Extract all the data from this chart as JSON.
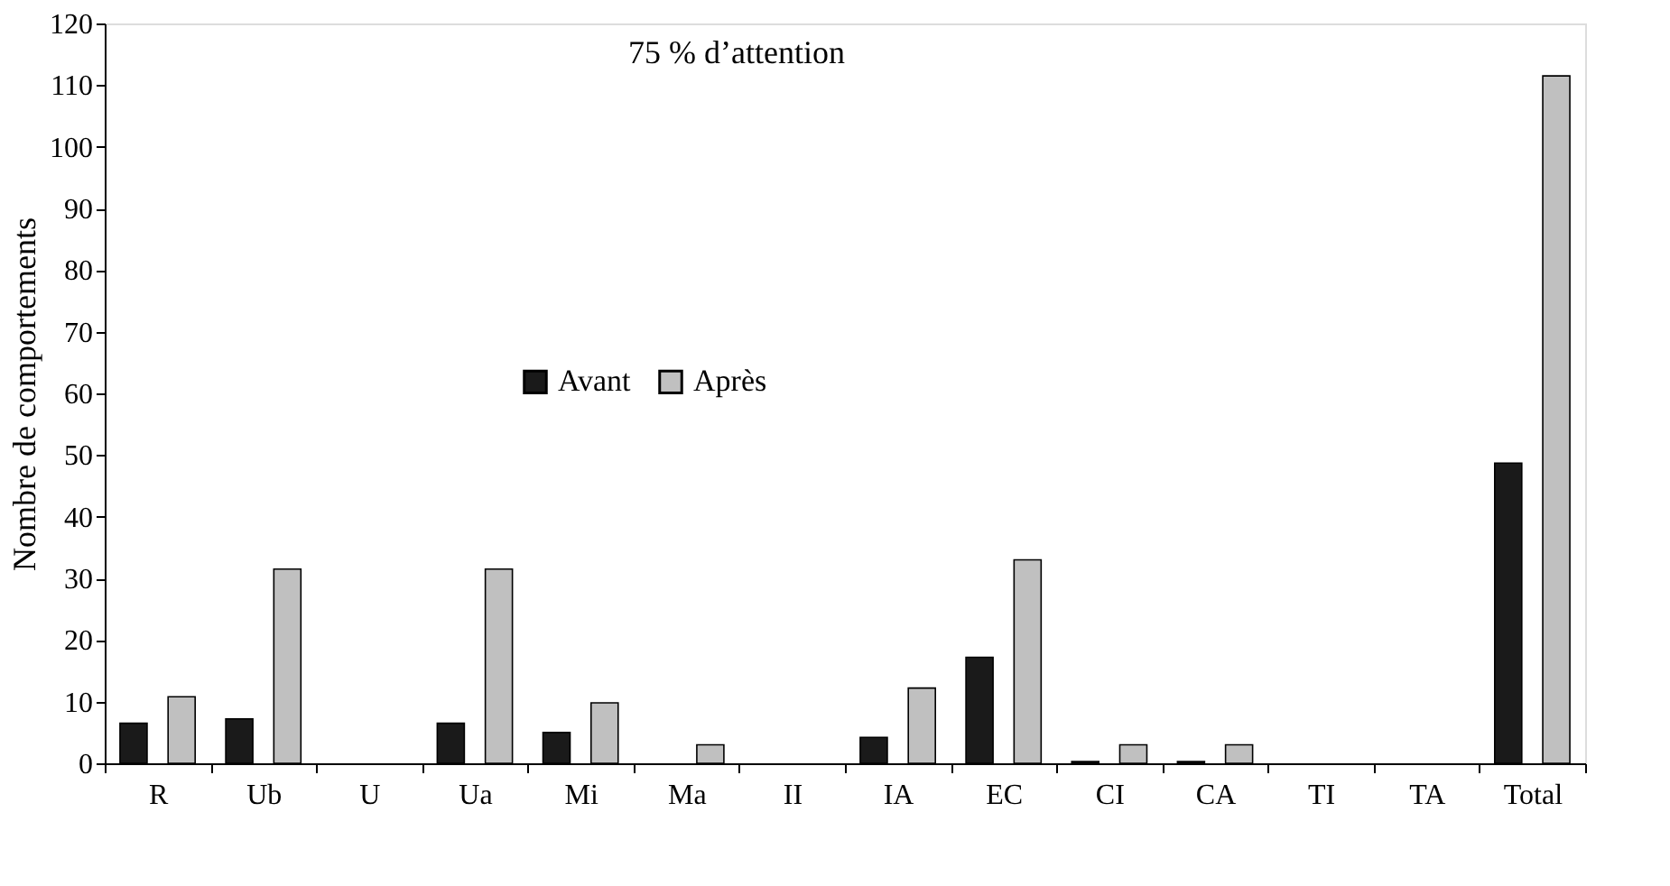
{
  "chart_data": {
    "type": "bar",
    "title": "75 % d’attention",
    "ylabel": "Nombre de comportements",
    "categories": [
      "R",
      "Ub",
      "U",
      "Ua",
      "Mi",
      "Ma",
      "II",
      "IA",
      "EC",
      "CI",
      "CA",
      "TI",
      "TA",
      "Total"
    ],
    "series": [
      {
        "name": "Avant",
        "color": "#1a1a1a",
        "values": [
          6.5,
          7.2,
          0,
          6.5,
          5,
          0,
          0,
          4.2,
          17.2,
          0.3,
          0.3,
          0,
          0,
          48.7
        ]
      },
      {
        "name": "Après",
        "color": "#c0c0c0",
        "values": [
          10.8,
          31.5,
          0,
          31.5,
          9.8,
          3,
          0,
          12.2,
          33,
          3,
          3,
          0,
          0,
          111.5
        ]
      }
    ],
    "ylim": [
      0,
      120
    ],
    "yticks": [
      0,
      10,
      20,
      30,
      40,
      50,
      60,
      70,
      80,
      90,
      100,
      110,
      120
    ],
    "grid": false,
    "legend": "center"
  }
}
